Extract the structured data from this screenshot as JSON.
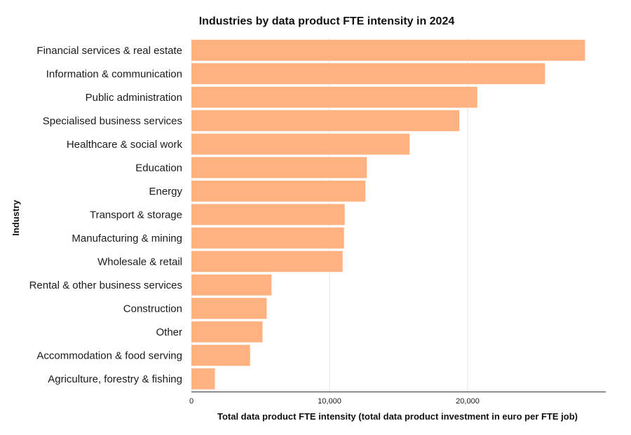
{
  "chart_data": {
    "type": "bar",
    "orientation": "horizontal",
    "title": "Industries by data product FTE intensity in 2024",
    "xlabel": "Total data product FTE intensity (total data product investment in euro per FTE job)",
    "ylabel": "Industry",
    "categories": [
      "Financial services & real estate",
      "Information & communication",
      "Public administration",
      "Specialised business services",
      "Healthcare & social work",
      "Education",
      "Energy",
      "Transport & storage",
      "Manufacturing & mining",
      "Wholesale & retail",
      "Rental & other business services",
      "Construction",
      "Other",
      "Accommodation & food serving",
      "Agriculture, forestry & fishing"
    ],
    "values": [
      28500,
      25600,
      20700,
      19400,
      15800,
      12700,
      12600,
      11100,
      11050,
      10950,
      5800,
      5450,
      5150,
      4250,
      1700
    ],
    "xlim": [
      0,
      30000
    ],
    "xticks": [
      0,
      10000,
      20000
    ],
    "xtick_labels": [
      "0",
      "10,000",
      "20,000"
    ],
    "grid": "vertical",
    "bar_color": "#ffb27f",
    "legend": "none"
  }
}
